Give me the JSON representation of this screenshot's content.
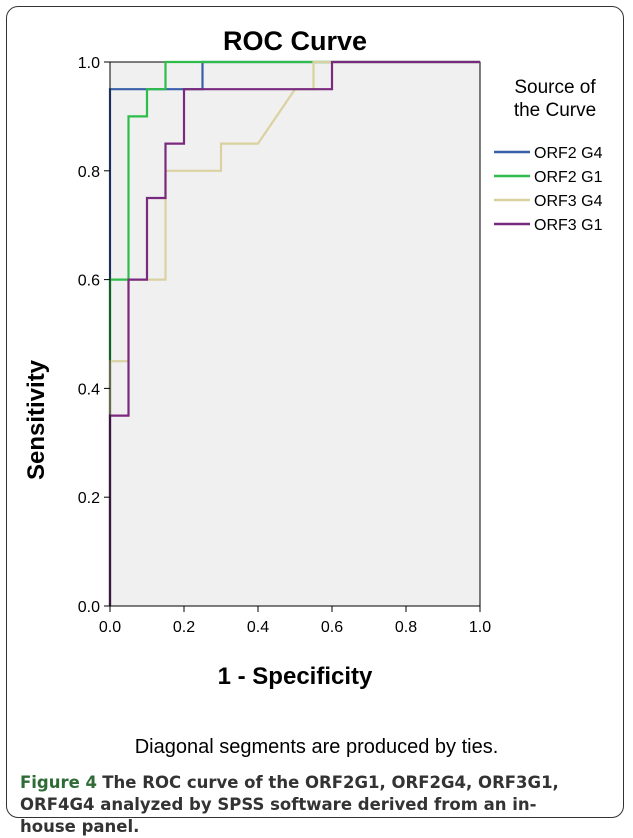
{
  "chart_data": {
    "type": "line",
    "title": "ROC Curve",
    "xlabel": "1 - Specificity",
    "ylabel": "Sensitivity",
    "xlim": [
      0,
      1
    ],
    "ylim": [
      0,
      1
    ],
    "x_ticks": [
      "0.0",
      "0.2",
      "0.4",
      "0.6",
      "0.8",
      "1.0"
    ],
    "y_ticks": [
      "0.0",
      "0.2",
      "0.4",
      "0.6",
      "0.8",
      "1.0"
    ],
    "legend": {
      "title_lines": [
        "Source of",
        "the Curve"
      ],
      "placement": "right"
    },
    "plot_background": "#f0f0f0",
    "series": [
      {
        "name": "ORF2 G4",
        "color": "#3a5fa8",
        "points": [
          [
            0,
            0
          ],
          [
            0,
            0.95
          ],
          [
            0.25,
            0.95
          ],
          [
            0.25,
            1.0
          ],
          [
            1.0,
            1.0
          ]
        ]
      },
      {
        "name": "ORF2 G1",
        "color": "#2ebd4a",
        "points": [
          [
            0,
            0
          ],
          [
            0,
            0.6
          ],
          [
            0.05,
            0.6
          ],
          [
            0.05,
            0.9
          ],
          [
            0.1,
            0.9
          ],
          [
            0.1,
            0.95
          ],
          [
            0.15,
            0.95
          ],
          [
            0.15,
            1.0
          ],
          [
            1.0,
            1.0
          ]
        ]
      },
      {
        "name": "ORF3 G4",
        "color": "#d9d2a0",
        "points": [
          [
            0,
            0
          ],
          [
            0,
            0.45
          ],
          [
            0.05,
            0.45
          ],
          [
            0.05,
            0.6
          ],
          [
            0.15,
            0.6
          ],
          [
            0.15,
            0.8
          ],
          [
            0.3,
            0.8
          ],
          [
            0.3,
            0.85
          ],
          [
            0.4,
            0.85
          ],
          [
            0.5,
            0.95
          ],
          [
            0.55,
            0.95
          ],
          [
            0.55,
            1.0
          ],
          [
            1.0,
            1.0
          ]
        ]
      },
      {
        "name": "ORF3 G1",
        "color": "#7a2a7e",
        "points": [
          [
            0,
            0
          ],
          [
            0,
            0.35
          ],
          [
            0.05,
            0.35
          ],
          [
            0.05,
            0.6
          ],
          [
            0.1,
            0.6
          ],
          [
            0.1,
            0.75
          ],
          [
            0.15,
            0.75
          ],
          [
            0.15,
            0.85
          ],
          [
            0.2,
            0.85
          ],
          [
            0.2,
            0.95
          ],
          [
            0.6,
            0.95
          ],
          [
            0.6,
            1.0
          ],
          [
            1.0,
            1.0
          ]
        ]
      }
    ]
  },
  "note": "Diagonal segments are produced by ties.",
  "caption": {
    "label": "Figure 4",
    "text": "The ROC curve of the ORF2G1, ORF2G4, ORF3G1, ORF4G4 analyzed by SPSS software derived from an in-house panel."
  }
}
